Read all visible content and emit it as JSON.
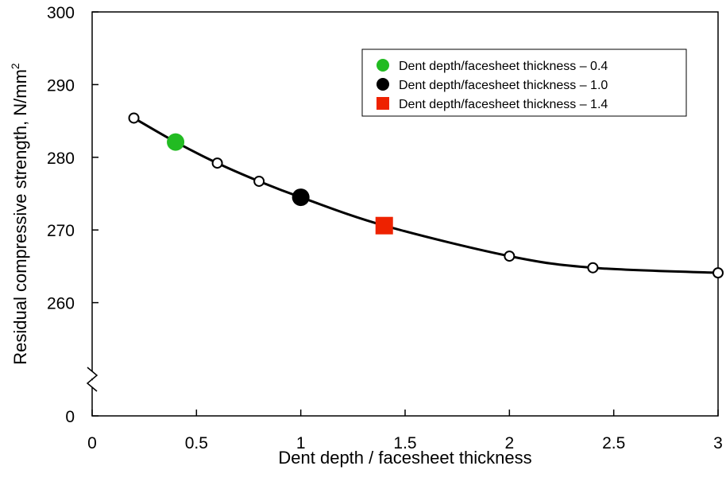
{
  "chart_data": {
    "type": "line",
    "xlabel": "Dent depth / facesheet thickness",
    "ylabel": "Residual compressive strength, N/mm",
    "ylabel_superscript": "2",
    "xlim": [
      0,
      3
    ],
    "ylim": [
      0,
      300
    ],
    "y_break_below": 250,
    "x_ticks": [
      "0",
      "0.5",
      "1",
      "1.5",
      "2",
      "2.5",
      "3"
    ],
    "y_ticks": [
      "0",
      "260",
      "270",
      "280",
      "290",
      "300"
    ],
    "grid": false,
    "legend_position": "top-right",
    "curve": {
      "x": [
        0.2,
        0.4,
        0.6,
        0.8,
        1.0,
        1.4,
        2.0,
        2.4,
        3.0
      ],
      "y": [
        285.4,
        282.1,
        279.2,
        276.7,
        274.5,
        270.6,
        266.4,
        264.8,
        264.1
      ]
    },
    "open_points": {
      "x": [
        0.2,
        0.6,
        0.8,
        2.0,
        2.4,
        3.0
      ],
      "y": [
        285.4,
        279.2,
        276.7,
        266.4,
        264.8,
        264.1
      ]
    },
    "highlight_points": [
      {
        "name": "Dent depth/facesheet thickness – 0.4",
        "x": 0.4,
        "y": 282.1,
        "marker": "circle",
        "color": "#22bb22"
      },
      {
        "name": "Dent depth/facesheet thickness – 1.0",
        "x": 1.0,
        "y": 274.5,
        "marker": "circle",
        "color": "#000000"
      },
      {
        "name": "Dent depth/facesheet thickness – 1.4",
        "x": 1.4,
        "y": 270.6,
        "marker": "square",
        "color": "#ee2200"
      }
    ]
  }
}
